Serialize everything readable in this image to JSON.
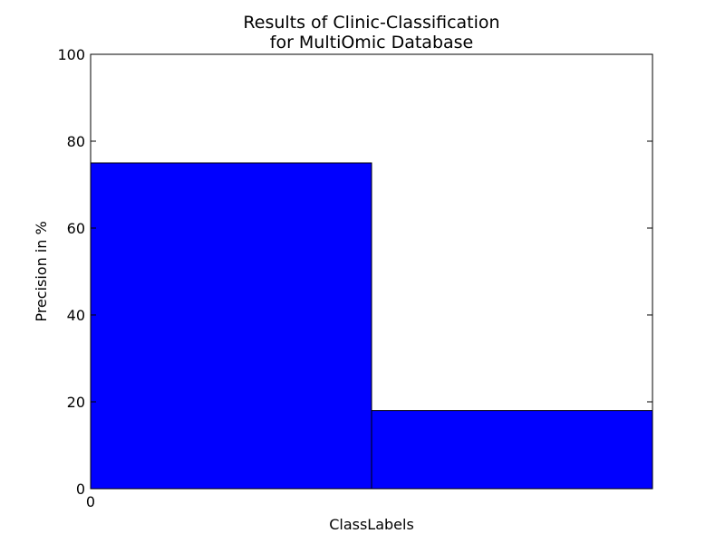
{
  "chart_data": {
    "type": "bar",
    "title": [
      "Results of Clinic-Classification",
      "for MultiOmic Database"
    ],
    "xlabel": "ClassLabels",
    "ylabel": "Precision in %",
    "x_tick_labels": [
      "0"
    ],
    "y_ticks": [
      0,
      20,
      40,
      60,
      80,
      100
    ],
    "ylim": [
      0,
      100
    ],
    "values": [
      75,
      18
    ],
    "bar_color": "#0000ff",
    "grid": false
  }
}
